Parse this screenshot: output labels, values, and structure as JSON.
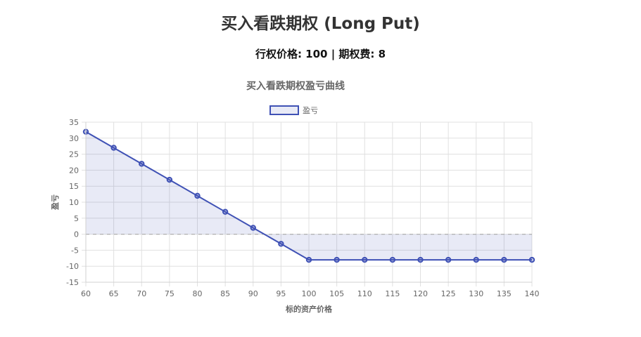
{
  "page": {
    "title": "买入看跌期权 (Long Put)",
    "subtitle": "行权价格: 100 | 期权费: 8"
  },
  "chart_data": {
    "type": "line",
    "title": "买入看跌期权盈亏曲线",
    "xlabel": "标的资产价格",
    "ylabel": "盈亏",
    "x": [
      60,
      65,
      70,
      75,
      80,
      85,
      90,
      95,
      100,
      105,
      110,
      115,
      120,
      125,
      130,
      135,
      140
    ],
    "series": [
      {
        "name": "盈亏",
        "values": [
          32,
          27,
          22,
          17,
          12,
          7,
          2,
          -3,
          -8,
          -8,
          -8,
          -8,
          -8,
          -8,
          -8,
          -8,
          -8
        ],
        "color": "#3f51b5",
        "fill": "rgba(63,81,181,0.12)"
      }
    ],
    "xlim": [
      60,
      140
    ],
    "ylim": [
      -15,
      35
    ],
    "y_ticks": [
      35,
      30,
      25,
      20,
      15,
      10,
      5,
      0,
      -5,
      -10,
      -15
    ],
    "reference_line": {
      "y": 0,
      "style": "dashed"
    },
    "grid": true,
    "legend": "top-center"
  }
}
